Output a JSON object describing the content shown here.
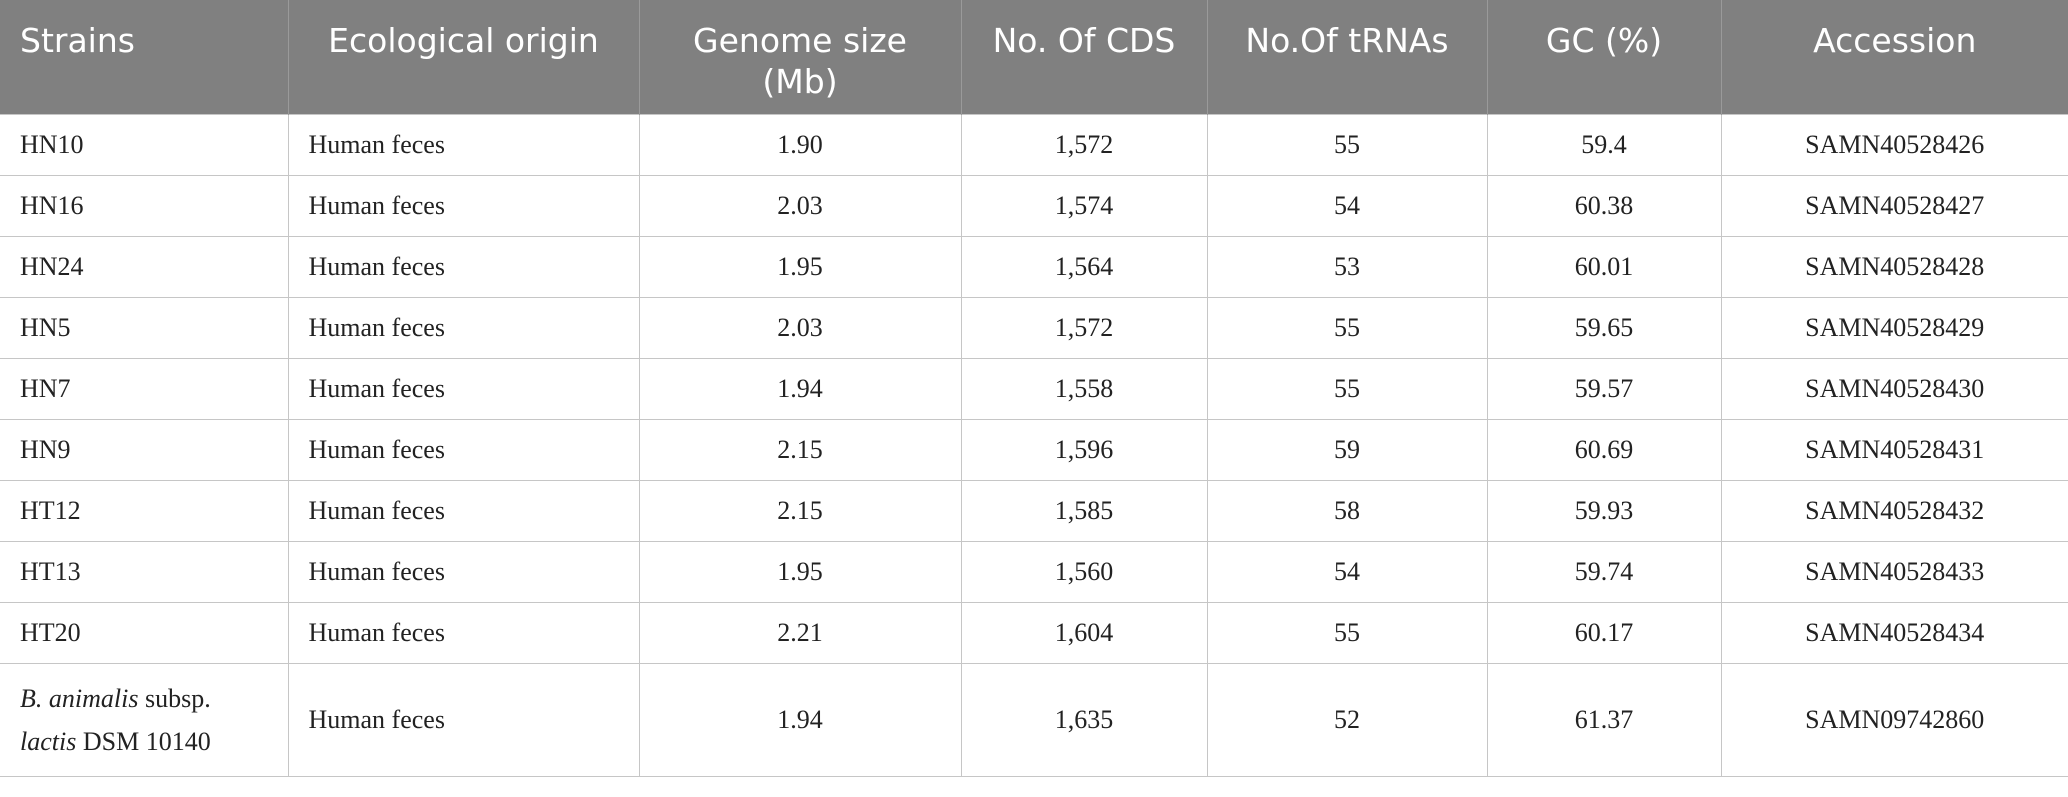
{
  "table": {
    "headers": [
      "Strains",
      "Ecological origin",
      "Genome size (Mb)",
      "No. Of CDS",
      "No.Of tRNAs",
      "GC (%)",
      "Accession"
    ],
    "rows": [
      {
        "strain": "HN10",
        "origin": "Human feces",
        "genome_size": "1.90",
        "cds": "1,572",
        "trnas": "55",
        "gc": "59.4",
        "accession": "SAMN40528426"
      },
      {
        "strain": "HN16",
        "origin": "Human feces",
        "genome_size": "2.03",
        "cds": "1,574",
        "trnas": "54",
        "gc": "60.38",
        "accession": "SAMN40528427"
      },
      {
        "strain": "HN24",
        "origin": "Human feces",
        "genome_size": "1.95",
        "cds": "1,564",
        "trnas": "53",
        "gc": "60.01",
        "accession": "SAMN40528428"
      },
      {
        "strain": "HN5",
        "origin": "Human feces",
        "genome_size": "2.03",
        "cds": "1,572",
        "trnas": "55",
        "gc": "59.65",
        "accession": "SAMN40528429"
      },
      {
        "strain": "HN7",
        "origin": "Human feces",
        "genome_size": "1.94",
        "cds": "1,558",
        "trnas": "55",
        "gc": "59.57",
        "accession": "SAMN40528430"
      },
      {
        "strain": "HN9",
        "origin": "Human feces",
        "genome_size": "2.15",
        "cds": "1,596",
        "trnas": "59",
        "gc": "60.69",
        "accession": "SAMN40528431"
      },
      {
        "strain": "HT12",
        "origin": "Human feces",
        "genome_size": "2.15",
        "cds": "1,585",
        "trnas": "58",
        "gc": "59.93",
        "accession": "SAMN40528432"
      },
      {
        "strain": "HT13",
        "origin": "Human feces",
        "genome_size": "1.95",
        "cds": "1,560",
        "trnas": "54",
        "gc": "59.74",
        "accession": "SAMN40528433"
      },
      {
        "strain": "HT20",
        "origin": "Human feces",
        "genome_size": "2.21",
        "cds": "1,604",
        "trnas": "55",
        "gc": "60.17",
        "accession": "SAMN40528434"
      }
    ],
    "reference_row": {
      "strain_parts": [
        "B. animalis",
        " subsp.",
        "lactis",
        " DSM 10140"
      ],
      "origin": "Human feces",
      "genome_size": "1.94",
      "cds": "1,635",
      "trnas": "52",
      "gc": "61.37",
      "accession": "SAMN09742860"
    }
  },
  "colors": {
    "header_bg": "#808080",
    "header_text": "#ffffff",
    "grid": "#c6c6c6",
    "body_text": "#222222"
  }
}
